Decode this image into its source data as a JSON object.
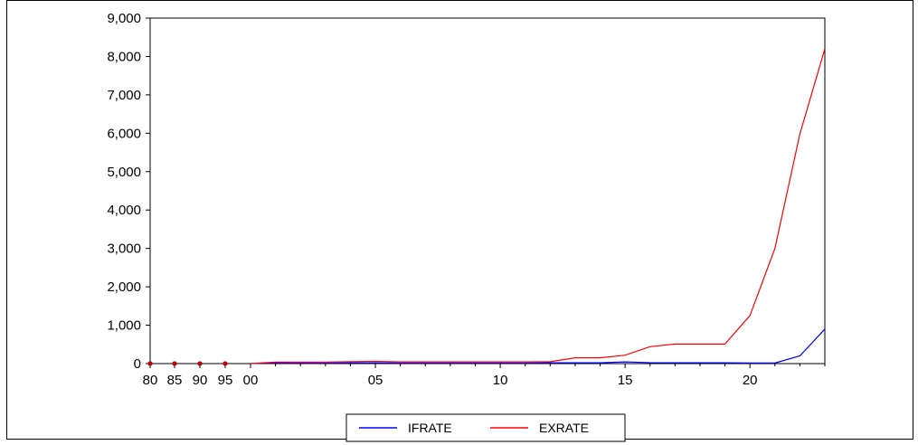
{
  "chart_data": {
    "type": "line",
    "title": "",
    "xlabel": "",
    "ylabel": "",
    "ylim": [
      0,
      9000
    ],
    "y_ticks": [
      0,
      1000,
      2000,
      3000,
      4000,
      5000,
      6000,
      7000,
      8000,
      9000
    ],
    "y_tick_labels": [
      "0",
      "1,000",
      "2,000",
      "3,000",
      "4,000",
      "5,000",
      "6,000",
      "7,000",
      "8,000",
      "9,000"
    ],
    "x_tick_labels": [
      "80",
      "85",
      "90",
      "95",
      "00",
      "05",
      "10",
      "15",
      "20"
    ],
    "legend_position": "bottom-center",
    "sparse_years": [
      1980,
      1985,
      1990,
      1995
    ],
    "annual_years": [
      2000,
      2001,
      2002,
      2003,
      2004,
      2005,
      2006,
      2007,
      2008,
      2009,
      2010,
      2011,
      2012,
      2013,
      2014,
      2015,
      2016,
      2017,
      2018,
      2019,
      2020,
      2021,
      2022,
      2023
    ],
    "series": [
      {
        "name": "IFRATE",
        "color": "#0000ff",
        "sparse_values": [
          0,
          0,
          0,
          0
        ],
        "values": [
          0,
          20,
          15,
          15,
          18,
          20,
          15,
          15,
          15,
          15,
          15,
          15,
          20,
          20,
          20,
          45,
          25,
          20,
          20,
          20,
          15,
          15,
          200,
          900
        ]
      },
      {
        "name": "EXRATE",
        "color": "#ff0000",
        "sparse_values": [
          0,
          0,
          0,
          0
        ],
        "values": [
          0,
          40,
          40,
          40,
          50,
          60,
          45,
          45,
          45,
          45,
          45,
          45,
          50,
          150,
          150,
          220,
          440,
          510,
          510,
          510,
          1250,
          3000,
          5980,
          8200
        ]
      }
    ]
  }
}
